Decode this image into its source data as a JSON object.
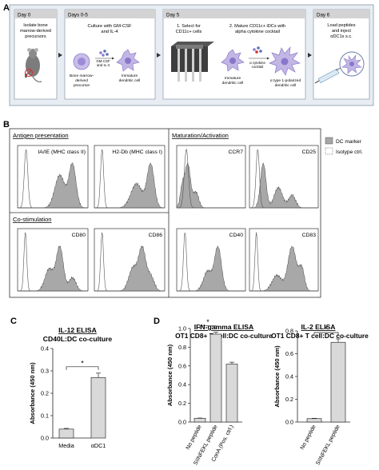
{
  "panel_a": {
    "letter": "A",
    "steps": [
      {
        "day": "Day 0",
        "text": [
          "Isolate bone",
          "marrow-derived",
          "precursors"
        ]
      },
      {
        "day": "Days 0-5",
        "text": [
          "Culture with GM-CSF",
          "and IL-4"
        ],
        "labels": {
          "gm": [
            "GM-CSF",
            "and IL-4"
          ],
          "left": [
            "Bone marrow-",
            "derived",
            "precursor"
          ],
          "right": [
            "Immature",
            "dendritic cell"
          ]
        }
      },
      {
        "day": "Day 5",
        "sub1": [
          "1. Select for",
          "CD11c+ cells"
        ],
        "sub2": [
          "2. Mature CD11c+ iDCs with",
          "alpha cytokine cocktail"
        ],
        "labels": {
          "left": [
            "Immature",
            "dendritic cell"
          ],
          "cocktail": [
            "α cytokine",
            "cocktail"
          ],
          "right": [
            "α type 1-polarized",
            "dendritic cell"
          ]
        }
      },
      {
        "day": "Day 6",
        "text": [
          "Load peptides",
          "and inject",
          "αDC1s s.c."
        ]
      }
    ]
  },
  "panel_b": {
    "letter": "B",
    "groups": {
      "antigen": "Antigen presentation",
      "costim": "Co-stimulation",
      "maturation": "Maturation/Activation"
    },
    "legend": {
      "dc": "DC marker",
      "iso": "Isotype ctrl."
    },
    "histograms": [
      {
        "id": "iaie",
        "label": "IA/IE (MHC class II)",
        "iso_mu": 0.12,
        "iso_sd": 0.025,
        "dc": [
          [
            0.6,
            0.07,
            0.75
          ],
          [
            0.78,
            0.05,
            1.0
          ]
        ]
      },
      {
        "id": "h2db",
        "label": "H2-Db (MHC class I)",
        "iso_mu": 0.11,
        "iso_sd": 0.022,
        "dc": [
          [
            0.6,
            0.08,
            0.55
          ],
          [
            0.8,
            0.05,
            1.0
          ]
        ]
      },
      {
        "id": "ccr7",
        "label": "CCR7",
        "iso_mu": 0.14,
        "iso_sd": 0.03,
        "dc": [
          [
            0.08,
            0.03,
            0.45
          ],
          [
            0.16,
            0.04,
            1.0
          ],
          [
            0.28,
            0.04,
            0.35
          ]
        ]
      },
      {
        "id": "cd25",
        "label": "CD25",
        "iso_mu": 0.12,
        "iso_sd": 0.025,
        "dc": [
          [
            0.2,
            0.04,
            1.0
          ],
          [
            0.42,
            0.06,
            0.45
          ],
          [
            0.62,
            0.05,
            0.28
          ]
        ]
      },
      {
        "id": "cd80",
        "label": "CD80",
        "iso_mu": 0.11,
        "iso_sd": 0.02,
        "dc": [
          [
            0.45,
            0.06,
            0.5
          ],
          [
            0.6,
            0.05,
            1.0
          ],
          [
            0.78,
            0.05,
            0.3
          ]
        ]
      },
      {
        "id": "cd86",
        "label": "CD86",
        "iso_mu": 0.11,
        "iso_sd": 0.02,
        "dc": [
          [
            0.55,
            0.06,
            0.55
          ],
          [
            0.68,
            0.05,
            1.0
          ],
          [
            0.8,
            0.05,
            0.35
          ]
        ]
      },
      {
        "id": "cd40",
        "label": "CD40",
        "iso_mu": 0.12,
        "iso_sd": 0.022,
        "dc": [
          [
            0.45,
            0.06,
            0.45
          ],
          [
            0.6,
            0.05,
            1.0
          ]
        ]
      },
      {
        "id": "cd83",
        "label": "CD83",
        "iso_mu": 0.1,
        "iso_sd": 0.02,
        "dc": [
          [
            0.4,
            0.07,
            0.35
          ],
          [
            0.62,
            0.06,
            1.0
          ],
          [
            0.76,
            0.04,
            0.5
          ]
        ]
      }
    ]
  },
  "chart_data": [
    {
      "type": "bar",
      "letter": "C",
      "title": "IL-12 ELISA",
      "subtitle": "CD40L:DC co-culture",
      "ylabel": "Absorbance (450 nm)",
      "categories": [
        "Media",
        "αDC1"
      ],
      "values": [
        0.04,
        0.27
      ],
      "errors": [
        0.003,
        0.02
      ],
      "ylim": [
        0,
        0.4
      ],
      "yticks": [
        0.0,
        0.1,
        0.2,
        0.3,
        0.4
      ],
      "tick_labels": [
        "0.0",
        "0.1",
        "0.2",
        "0.3",
        "0.4"
      ],
      "significance": "*"
    },
    {
      "type": "bar",
      "letter": "D",
      "title": "IFN-gamma ELISA",
      "subtitle": "OT1 CD8+ T cell:DC co-culture",
      "ylabel": "Absorbance (450 nm)",
      "categories": [
        "No peptide",
        "SIINFEKL peptide",
        "ConA (Pos. ctrl.)"
      ],
      "values": [
        0.04,
        0.94,
        0.62
      ],
      "errors": [
        0.003,
        0.02,
        0.02
      ],
      "ylim": [
        0,
        1.0
      ],
      "yticks": [
        0.0,
        0.2,
        0.4,
        0.6,
        0.8,
        1.0
      ],
      "tick_labels": [
        "0.0",
        "0.2",
        "0.4",
        "0.6",
        "0.8",
        "1.0"
      ],
      "significance": "*"
    },
    {
      "type": "bar",
      "title": "IL-2 ELISA",
      "subtitle": "OT1 CD8+ T cell:DC co-culture",
      "ylabel": "Absorbance (450 nm)",
      "categories": [
        "No peptide",
        "SIINFEKL peptide"
      ],
      "values": [
        0.03,
        0.7
      ],
      "errors": [
        0.003,
        0.03
      ],
      "ylim": [
        0,
        0.8
      ],
      "yticks": [
        0.0,
        0.2,
        0.4,
        0.6,
        0.8
      ],
      "tick_labels": [
        "0.0",
        "0.2",
        "0.4",
        "0.6",
        "0.8"
      ],
      "significance": "*"
    }
  ]
}
